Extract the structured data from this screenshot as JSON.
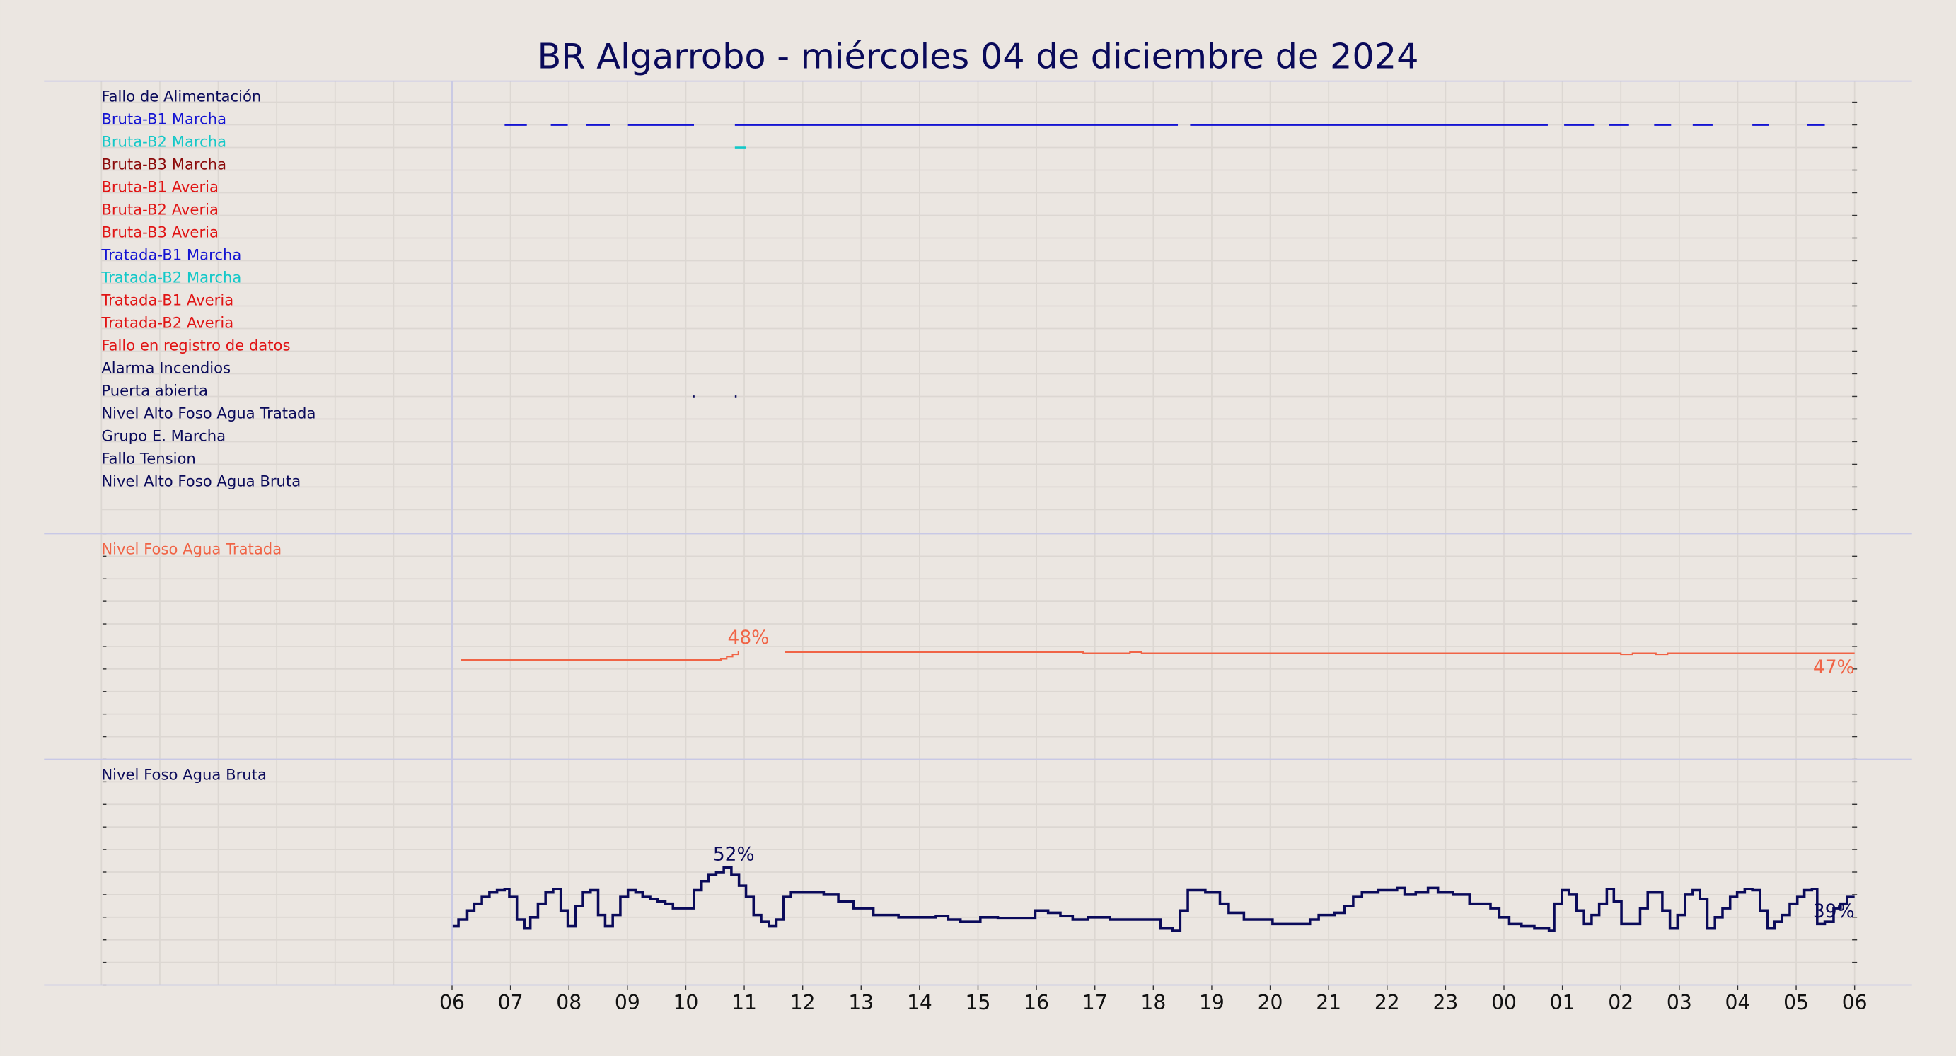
{
  "chart_data": [
    {
      "type": "timeline",
      "title": "BR Algarrobo   -   miércoles 04 de diciembre de 2024",
      "xlim": [
        0,
        30
      ],
      "rows": [
        {
          "name": "Fallo de Alimentación",
          "color": "#0a0a5a",
          "segments": []
        },
        {
          "name": "Bruta-B1 Marcha",
          "color": "#1414d2",
          "segments": [
            [
              6.9,
              7.28
            ],
            [
              7.69,
              7.98
            ],
            [
              8.3,
              8.71
            ],
            [
              9.01,
              10.14
            ],
            [
              10.84,
              18.42
            ],
            [
              18.63,
              24.75
            ],
            [
              25.03,
              25.54
            ],
            [
              25.8,
              26.14
            ],
            [
              26.57,
              26.86
            ],
            [
              27.23,
              27.57
            ],
            [
              28.25,
              28.53
            ],
            [
              29.19,
              29.49
            ]
          ]
        },
        {
          "name": "Bruta-B2 Marcha",
          "color": "#14c8c8",
          "segments": [
            [
              10.84,
              11.03
            ]
          ]
        },
        {
          "name": "Bruta-B3 Marcha",
          "color": "#8b0a0a",
          "segments": []
        },
        {
          "name": "Bruta-B1 Averia",
          "color": "#e01414",
          "segments": []
        },
        {
          "name": "Bruta-B2 Averia",
          "color": "#e01414",
          "segments": []
        },
        {
          "name": "Bruta-B3 Averia",
          "color": "#e01414",
          "segments": []
        },
        {
          "name": "Tratada-B1 Marcha",
          "color": "#1414d2",
          "segments": []
        },
        {
          "name": "Tratada-B2 Marcha",
          "color": "#14c8c8",
          "segments": []
        },
        {
          "name": "Tratada-B1 Averia",
          "color": "#e01414",
          "segments": []
        },
        {
          "name": "Tratada-B2 Averia",
          "color": "#e01414",
          "segments": []
        },
        {
          "name": "Fallo en registro de datos",
          "color": "#e01414",
          "segments": []
        },
        {
          "name": "Alarma Incendios",
          "color": "#0a0a5a",
          "segments": []
        },
        {
          "name": "Puerta abierta",
          "color": "#0a0a5a",
          "segments": [
            [
              10.12,
              10.15
            ],
            [
              10.84,
              10.87
            ]
          ]
        },
        {
          "name": "Nivel Alto Foso Agua Tratada",
          "color": "#0a0a5a",
          "segments": []
        },
        {
          "name": "Grupo E. Marcha",
          "color": "#0a0a5a",
          "segments": []
        },
        {
          "name": "Fallo Tension",
          "color": "#0a0a5a",
          "segments": []
        },
        {
          "name": "Nivel Alto Foso Agua Bruta",
          "color": "#0a0a5a",
          "segments": []
        }
      ]
    },
    {
      "type": "line",
      "xlim": [
        0,
        30
      ],
      "ylim": [
        0,
        100
      ],
      "yticks": [
        0,
        10,
        20,
        30,
        40,
        50,
        60,
        70,
        80,
        90,
        100
      ],
      "series": [
        {
          "name": "Nivel Foso Agua Tratada",
          "color": "#f06446",
          "x": [
            6.15,
            10.6,
            10.7,
            10.8,
            10.9,
            11.0,
            11.7,
            16.8,
            17.6,
            17.8,
            26.0,
            26.2,
            26.6,
            26.8,
            30
          ],
          "values": [
            44,
            44.5,
            45.5,
            46.5,
            48,
            null,
            47.5,
            47,
            47.5,
            47,
            46.5,
            47,
            46.5,
            47,
            47
          ]
        }
      ],
      "annotations": [
        {
          "x": 10.9,
          "value": 48,
          "label": "48%"
        },
        {
          "x": 30,
          "value": 47,
          "label": "47%"
        }
      ]
    },
    {
      "type": "line",
      "xlim": [
        0,
        30
      ],
      "ylim": [
        0,
        100
      ],
      "yticks": [
        0,
        10,
        20,
        30,
        40,
        50,
        60,
        70,
        80,
        90,
        100
      ],
      "xticks": [
        {
          "value": 6,
          "label": "06"
        },
        {
          "value": 7,
          "label": "07"
        },
        {
          "value": 8,
          "label": "08"
        },
        {
          "value": 9,
          "label": "09"
        },
        10,
        11,
        12,
        13,
        14,
        15,
        16,
        17,
        18,
        19,
        20,
        21,
        22,
        23,
        {
          "value": 24,
          "label": "00"
        },
        {
          "value": 25,
          "label": "01"
        },
        {
          "value": 26,
          "label": "02"
        },
        {
          "value": 27,
          "label": "03"
        },
        {
          "value": 28,
          "label": "04"
        },
        {
          "value": 29,
          "label": "05"
        },
        {
          "value": 30,
          "label": "06"
        }
      ],
      "series": [
        {
          "name": "Nivel Foso Agua Bruta",
          "color": "#0a0a5a",
          "x": [
            6.0,
            6.11,
            6.26,
            6.38,
            6.51,
            6.64,
            6.77,
            6.9,
            6.98,
            7.11,
            7.24,
            7.34,
            7.47,
            7.6,
            7.73,
            7.86,
            7.98,
            8.11,
            8.24,
            8.37,
            8.5,
            8.62,
            8.75,
            8.88,
            9.01,
            9.14,
            9.26,
            9.39,
            9.52,
            9.65,
            9.78,
            10.14,
            10.27,
            10.39,
            10.52,
            10.65,
            10.78,
            10.91,
            11.03,
            11.16,
            11.29,
            11.42,
            11.55,
            11.67,
            11.8,
            12.36,
            12.61,
            12.87,
            13.21,
            13.64,
            14.28,
            14.49,
            14.7,
            15.04,
            15.34,
            15.98,
            16.2,
            16.41,
            16.62,
            16.88,
            17.26,
            18.12,
            18.33,
            18.46,
            18.59,
            18.89,
            19.14,
            19.29,
            19.55,
            20.04,
            20.68,
            20.83,
            21.1,
            21.27,
            21.42,
            21.57,
            21.85,
            22.17,
            22.3,
            22.49,
            22.7,
            22.87,
            23.13,
            23.41,
            23.77,
            23.92,
            24.09,
            24.3,
            24.52,
            24.77,
            24.86,
            24.99,
            25.11,
            25.24,
            25.37,
            25.5,
            25.63,
            25.76,
            25.88,
            26.01,
            26.33,
            26.46,
            26.71,
            26.84,
            26.97,
            27.1,
            27.23,
            27.35,
            27.48,
            27.61,
            27.74,
            27.87,
            27.99,
            28.12,
            28.25,
            28.38,
            28.51,
            28.63,
            28.76,
            28.89,
            29.02,
            29.14,
            29.27,
            29.36,
            29.49,
            29.64,
            29.76,
            29.87,
            30
          ],
          "values": [
            26,
            29,
            33,
            36,
            39,
            41,
            42,
            42.5,
            39,
            29,
            25,
            30,
            36,
            41,
            42.5,
            33,
            26,
            35,
            41,
            42,
            31,
            26,
            31,
            39,
            42,
            41,
            39,
            38,
            37,
            36,
            34,
            42,
            46,
            49,
            50,
            52,
            49,
            44,
            39,
            31,
            28,
            26,
            29,
            39,
            41,
            40,
            37,
            34,
            31,
            30,
            30.5,
            29,
            28,
            30,
            29.5,
            33,
            32,
            30.5,
            29,
            30,
            29,
            25,
            24,
            33,
            42,
            41,
            36,
            32,
            29,
            27,
            29,
            31,
            32,
            35,
            39,
            41,
            42,
            43,
            40,
            41,
            43,
            41,
            40,
            36,
            34,
            30,
            27,
            26,
            25,
            24,
            36,
            42,
            40,
            33,
            27,
            31,
            36,
            42.5,
            37,
            27,
            34,
            41,
            33,
            25,
            31,
            40,
            42,
            38,
            25,
            30,
            34,
            39,
            41,
            42.5,
            42,
            33,
            25,
            28,
            31,
            36,
            39,
            42,
            42.5,
            27,
            28,
            34,
            36,
            39,
            39
          ]
        }
      ],
      "annotations": [
        {
          "x": 10.65,
          "value": 52,
          "label": "52%"
        },
        {
          "x": 30,
          "value": 39,
          "label": "39%"
        }
      ]
    }
  ]
}
